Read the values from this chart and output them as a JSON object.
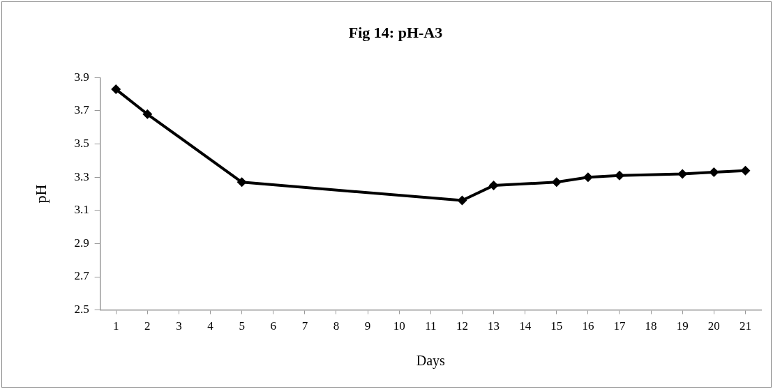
{
  "chart_data": {
    "type": "line",
    "title": "Fig 14: pH-A3",
    "xlabel": "Days",
    "ylabel": "pH",
    "x": [
      1,
      2,
      5,
      12,
      13,
      15,
      16,
      17,
      19,
      20,
      21
    ],
    "series": [
      {
        "color": "#000000",
        "values": [
          3.83,
          3.68,
          3.27,
          3.16,
          3.25,
          3.27,
          3.3,
          3.31,
          3.32,
          3.33,
          3.34
        ]
      }
    ],
    "xlim": [
      0.5,
      21.5
    ],
    "xticks": [
      1,
      2,
      3,
      4,
      5,
      6,
      7,
      8,
      9,
      10,
      11,
      12,
      13,
      14,
      15,
      16,
      17,
      18,
      19,
      20,
      21
    ],
    "ylim": [
      2.5,
      3.9
    ],
    "yticks": [
      2.5,
      2.7,
      2.9,
      3.1,
      3.3,
      3.5,
      3.7,
      3.9
    ],
    "grid": false,
    "legend": false,
    "marker": "diamond",
    "line_style": "solid"
  }
}
